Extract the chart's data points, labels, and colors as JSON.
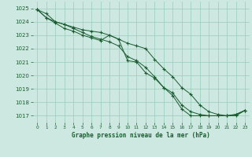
{
  "title": "Graphe pression niveau de la mer (hPa)",
  "background_color": "#cce8e0",
  "plot_background": "#cce8e0",
  "grid_color": "#99ccbb",
  "line_color": "#1a5c30",
  "marker_color": "#1a5c30",
  "xlim": [
    -0.5,
    23.5
  ],
  "ylim": [
    1016.5,
    1025.5
  ],
  "yticks": [
    1017,
    1018,
    1019,
    1020,
    1021,
    1022,
    1023,
    1024,
    1025
  ],
  "xticks": [
    0,
    1,
    2,
    3,
    4,
    5,
    6,
    7,
    8,
    9,
    10,
    11,
    12,
    13,
    14,
    15,
    16,
    17,
    18,
    19,
    20,
    21,
    22,
    23
  ],
  "line1": [
    1024.9,
    1024.6,
    1024.0,
    1023.8,
    1023.5,
    1023.2,
    1022.9,
    1022.7,
    1022.5,
    1022.2,
    1021.4,
    1021.1,
    1020.6,
    1019.9,
    1019.1,
    1018.7,
    1017.8,
    1017.3,
    1017.1,
    1017.0,
    1017.0,
    1017.0,
    1017.1,
    1017.4
  ],
  "line2": [
    1024.9,
    1024.3,
    1023.9,
    1023.5,
    1023.3,
    1023.0,
    1022.8,
    1022.6,
    1023.0,
    1022.7,
    1021.1,
    1021.0,
    1020.2,
    1019.8,
    1019.1,
    1018.5,
    1017.5,
    1017.0,
    1017.0,
    1017.0,
    1017.0,
    1017.0,
    1017.0,
    1017.4
  ],
  "line3": [
    1024.9,
    1024.3,
    1024.0,
    1023.8,
    1023.6,
    1023.4,
    1023.3,
    1023.2,
    1023.0,
    1022.7,
    1022.4,
    1022.2,
    1022.0,
    1021.2,
    1020.5,
    1019.9,
    1019.1,
    1018.6,
    1017.8,
    1017.3,
    1017.1,
    1017.0,
    1017.1,
    1017.4
  ]
}
